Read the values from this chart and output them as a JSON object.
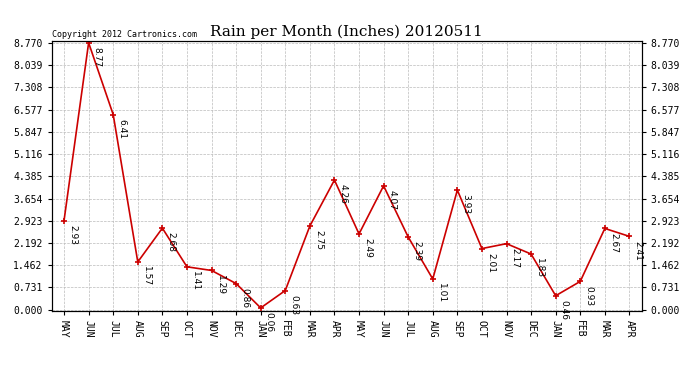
{
  "title": "Rain per Month (Inches) 20120511",
  "copyright": "Copyright 2012 Cartronics.com",
  "months": [
    "MAY",
    "JUN",
    "JUL",
    "AUG",
    "SEP",
    "OCT",
    "NOV",
    "DEC",
    "JAN",
    "FEB",
    "MAR",
    "APR",
    "MAY",
    "JUN",
    "JUL",
    "AUG",
    "SEP",
    "OCT",
    "NOV",
    "DEC",
    "JAN",
    "FEB",
    "MAR",
    "APR"
  ],
  "values": [
    2.93,
    8.77,
    6.41,
    1.57,
    2.68,
    1.41,
    1.29,
    0.86,
    0.06,
    0.63,
    2.75,
    4.26,
    2.49,
    4.07,
    2.39,
    1.01,
    3.93,
    2.01,
    2.17,
    1.83,
    0.46,
    0.93,
    2.67,
    2.41
  ],
  "yticks": [
    0.0,
    0.731,
    1.462,
    2.192,
    2.923,
    3.654,
    4.385,
    5.116,
    5.847,
    6.577,
    7.308,
    8.039,
    8.77
  ],
  "line_color": "#cc0000",
  "marker_color": "#cc0000",
  "bg_color": "#ffffff",
  "grid_color": "#bbbbbb",
  "title_fontsize": 11,
  "label_fontsize": 6.5,
  "tick_fontsize": 7,
  "copyright_fontsize": 6
}
